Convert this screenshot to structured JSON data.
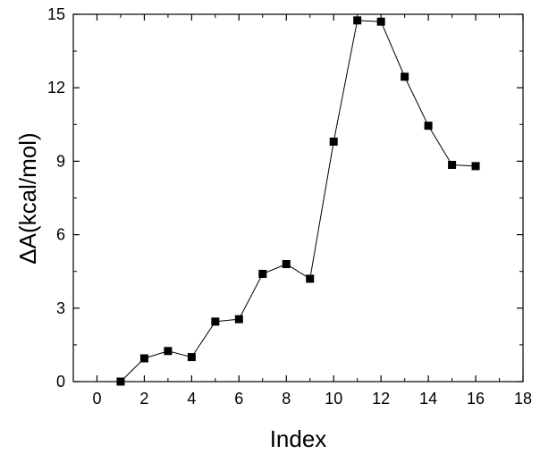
{
  "chart_data": {
    "type": "line",
    "xlabel": "Index",
    "ylabel": "ΔA(kcal/mol)",
    "xlim": [
      -1,
      18
    ],
    "ylim": [
      0,
      15
    ],
    "xticks": [
      0,
      2,
      4,
      6,
      8,
      10,
      12,
      14,
      16,
      18
    ],
    "yticks": [
      0,
      3,
      6,
      9,
      12,
      15
    ],
    "x_tick_labels": [
      "0",
      "2",
      "4",
      "6",
      "8",
      "10",
      "12",
      "14",
      "16",
      "18"
    ],
    "y_tick_labels": [
      "0",
      "3",
      "6",
      "9",
      "12",
      "15"
    ],
    "grid": false,
    "marker": "square",
    "series": [
      {
        "x": [
          1,
          2,
          3,
          4,
          5,
          6,
          7,
          8,
          9,
          10,
          11,
          12,
          13,
          14,
          15,
          16
        ],
        "y": [
          0.0,
          0.95,
          1.25,
          1.0,
          2.45,
          2.55,
          4.4,
          4.8,
          4.2,
          9.8,
          14.75,
          14.7,
          12.45,
          10.45,
          8.85,
          8.8
        ],
        "color": "#000000"
      }
    ]
  }
}
